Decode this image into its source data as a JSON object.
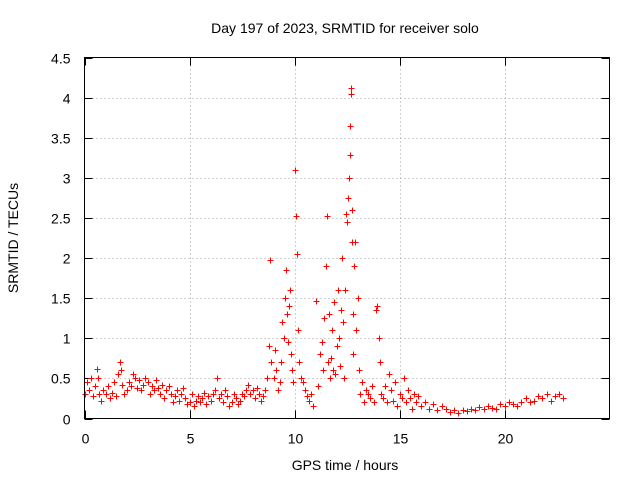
{
  "chart_data": {
    "type": "scatter",
    "title": "Day 197 of 2023, SRMTID for receiver solo",
    "xlabel": "GPS time / hours",
    "ylabel": "SRMTID / TECUs",
    "xlim": [
      0,
      25
    ],
    "ylim": [
      0,
      4.5
    ],
    "xticks": [
      0,
      5,
      10,
      15,
      20
    ],
    "xtick_labels": [
      "0",
      "5",
      "10",
      "15",
      "20"
    ],
    "yticks": [
      0,
      0.5,
      1,
      1.5,
      2,
      2.5,
      3,
      3.5,
      4,
      4.5
    ],
    "ytick_labels": [
      "0",
      "0.5",
      "1",
      "1.5",
      "2",
      "2.5",
      "3",
      "3.5",
      "4",
      "4.5"
    ],
    "grid": true,
    "marker": "+",
    "marker_color": "#ff0000",
    "series": [
      {
        "name": "SRMTID",
        "x": [
          0.0,
          0.1,
          0.2,
          0.3,
          0.4,
          0.5,
          0.6,
          0.65,
          0.7,
          0.8,
          0.9,
          1.0,
          1.1,
          1.2,
          1.3,
          1.4,
          1.5,
          1.6,
          1.7,
          1.75,
          1.8,
          1.9,
          2.0,
          2.1,
          2.2,
          2.3,
          2.4,
          2.5,
          2.6,
          2.7,
          2.8,
          2.9,
          3.0,
          3.1,
          3.2,
          3.3,
          3.4,
          3.5,
          3.6,
          3.7,
          3.8,
          3.9,
          4.0,
          4.1,
          4.2,
          4.3,
          4.4,
          4.5,
          4.6,
          4.7,
          4.8,
          4.9,
          5.0,
          5.1,
          5.2,
          5.3,
          5.4,
          5.5,
          5.6,
          5.7,
          5.8,
          5.9,
          6.0,
          6.1,
          6.2,
          6.3,
          6.4,
          6.5,
          6.6,
          6.7,
          6.8,
          6.9,
          7.0,
          7.1,
          7.2,
          7.3,
          7.4,
          7.5,
          7.6,
          7.7,
          7.8,
          7.9,
          8.0,
          8.1,
          8.2,
          8.3,
          8.4,
          8.5,
          8.6,
          8.7,
          8.8,
          8.85,
          8.9,
          9.0,
          9.05,
          9.1,
          9.2,
          9.3,
          9.35,
          9.4,
          9.5,
          9.55,
          9.6,
          9.65,
          9.7,
          9.75,
          9.8,
          9.85,
          9.9,
          9.95,
          10.0,
          10.05,
          10.1,
          10.15,
          10.2,
          10.3,
          10.4,
          10.5,
          10.6,
          10.7,
          10.8,
          10.9,
          11.0,
          11.1,
          11.2,
          11.3,
          11.35,
          11.4,
          11.5,
          11.55,
          11.6,
          11.65,
          11.7,
          11.75,
          11.8,
          11.85,
          11.9,
          11.95,
          12.0,
          12.05,
          12.1,
          12.15,
          12.2,
          12.25,
          12.3,
          12.35,
          12.4,
          12.45,
          12.5,
          12.55,
          12.6,
          12.62,
          12.65,
          12.68,
          12.7,
          12.72,
          12.75,
          12.78,
          12.8,
          12.85,
          12.9,
          12.95,
          13.0,
          13.05,
          13.1,
          13.2,
          13.3,
          13.4,
          13.5,
          13.6,
          13.7,
          13.8,
          13.9,
          13.95,
          14.0,
          14.05,
          14.1,
          14.2,
          14.3,
          14.4,
          14.5,
          14.6,
          14.7,
          14.8,
          14.9,
          15.0,
          15.1,
          15.2,
          15.3,
          15.4,
          15.5,
          15.6,
          15.7,
          15.8,
          15.9,
          16.0,
          16.2,
          16.4,
          16.6,
          16.8,
          17.0,
          17.2,
          17.4,
          17.6,
          17.8,
          18.0,
          18.2,
          18.4,
          18.6,
          18.8,
          19.0,
          19.2,
          19.4,
          19.6,
          19.8,
          20.0,
          20.2,
          20.4,
          20.6,
          20.8,
          21.0,
          21.2,
          21.4,
          21.6,
          21.8,
          22.0,
          22.2,
          22.4,
          22.6,
          22.8
        ],
        "y": [
          0.3,
          0.45,
          0.35,
          0.5,
          0.28,
          0.4,
          0.62,
          0.5,
          0.3,
          0.22,
          0.35,
          0.3,
          0.4,
          0.25,
          0.32,
          0.45,
          0.28,
          0.55,
          0.7,
          0.6,
          0.42,
          0.3,
          0.35,
          0.45,
          0.4,
          0.55,
          0.5,
          0.38,
          0.48,
          0.35,
          0.42,
          0.5,
          0.45,
          0.3,
          0.4,
          0.35,
          0.48,
          0.38,
          0.3,
          0.42,
          0.25,
          0.35,
          0.4,
          0.3,
          0.2,
          0.28,
          0.35,
          0.22,
          0.3,
          0.38,
          0.25,
          0.18,
          0.2,
          0.3,
          0.15,
          0.22,
          0.28,
          0.2,
          0.25,
          0.32,
          0.18,
          0.28,
          0.22,
          0.3,
          0.35,
          0.5,
          0.25,
          0.3,
          0.2,
          0.35,
          0.28,
          0.15,
          0.2,
          0.3,
          0.25,
          0.18,
          0.22,
          0.3,
          0.28,
          0.35,
          0.42,
          0.3,
          0.35,
          0.25,
          0.38,
          0.3,
          0.22,
          0.28,
          0.35,
          0.5,
          0.9,
          1.98,
          0.7,
          0.5,
          0.85,
          0.6,
          0.35,
          0.45,
          0.7,
          1.2,
          1.0,
          1.5,
          1.85,
          1.3,
          0.95,
          1.4,
          1.6,
          0.8,
          0.6,
          0.45,
          3.1,
          2.53,
          2.05,
          1.1,
          0.7,
          0.5,
          0.45,
          0.35,
          0.28,
          0.22,
          0.3,
          0.15,
          1.47,
          0.4,
          0.8,
          0.95,
          0.6,
          1.25,
          1.9,
          2.52,
          0.7,
          1.3,
          0.5,
          0.75,
          1.1,
          0.6,
          1.45,
          0.55,
          0.9,
          1.6,
          1.0,
          0.65,
          1.35,
          2.0,
          1.2,
          0.5,
          1.6,
          2.55,
          2.45,
          2.75,
          3.0,
          3.28,
          3.65,
          4.05,
          4.12,
          2.6,
          2.2,
          1.3,
          0.8,
          1.9,
          2.2,
          1.1,
          1.5,
          0.6,
          0.3,
          0.45,
          0.2,
          0.35,
          0.3,
          0.25,
          0.4,
          0.2,
          1.35,
          1.4,
          1.0,
          0.7,
          0.3,
          0.25,
          0.4,
          0.2,
          0.55,
          0.35,
          0.22,
          0.45,
          0.15,
          0.3,
          0.25,
          0.5,
          0.2,
          0.35,
          0.25,
          0.12,
          0.3,
          0.2,
          0.28,
          0.15,
          0.2,
          0.12,
          0.18,
          0.1,
          0.15,
          0.12,
          0.08,
          0.1,
          0.07,
          0.1,
          0.09,
          0.12,
          0.1,
          0.14,
          0.12,
          0.15,
          0.13,
          0.12,
          0.18,
          0.15,
          0.2,
          0.18,
          0.15,
          0.2,
          0.25,
          0.2,
          0.22,
          0.28,
          0.25,
          0.3,
          0.22,
          0.28,
          0.3,
          0.25
        ]
      }
    ]
  }
}
